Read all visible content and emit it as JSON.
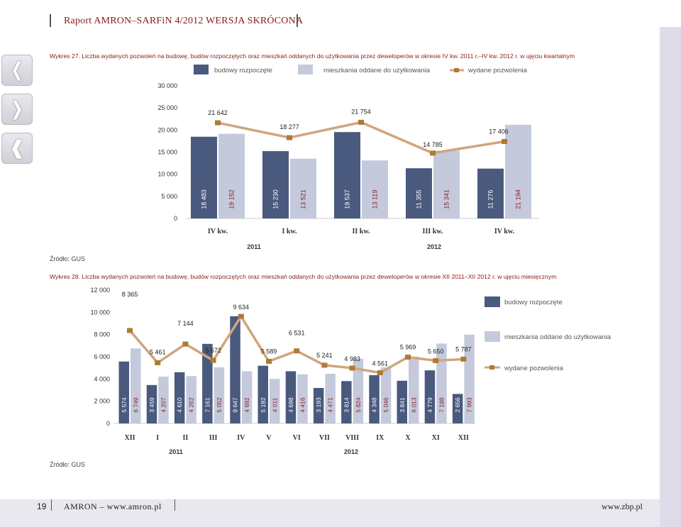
{
  "header": {
    "title": "Raport AMRON–SARFiN 4/2012 WERSJA SKRÓCONA"
  },
  "nav": {
    "prev": "❬",
    "next": "❭",
    "first": "❰"
  },
  "chart27_caption": "Wykres 27. Liczba wydanych pozwoleń na budowę, budów rozpoczętych oraz mieszkań oddanych do użytkowania przez deweloperów w okresie IV kw. 2011 r.–IV kw. 2012 r. w ujęciu kwartalnym",
  "chart28_caption": "Wykres 28. Liczba wydanych pozwoleń na budowę, budów rozpoczętych oraz mieszkań oddanych do użytkowania przez deweloperów w okresie XII 2011–XII 2012 r. w ujęciu miesięcznym",
  "source1": "Źródło: GUS",
  "source2": "Źródło: GUS",
  "footer": {
    "page": "19",
    "left": "AMRON – www.amron.pl",
    "right": "www.zbp.pl"
  },
  "colors": {
    "started": "#4a5a7e",
    "completed": "#c4cadc",
    "permits": "#d0a57e",
    "marker": "#b07a32"
  },
  "chart_data": [
    {
      "type": "bar",
      "categories": [
        "IV kw.",
        "I kw.",
        "II kw.",
        "III kw.",
        "IV kw."
      ],
      "year_labels": [
        "2011",
        "2012"
      ],
      "ylim": [
        0,
        30000
      ],
      "yticks": [
        "0",
        "5 000",
        "10 000",
        "15 000",
        "20 000",
        "25 000",
        "30 000"
      ],
      "legend": [
        "budowy rozpoczęte",
        "mieszkania oddane do użytkowania",
        "wydane pozwolenia"
      ],
      "series": [
        {
          "name": "budowy rozpoczęte",
          "values": [
            18483,
            15230,
            19537,
            11355,
            11276
          ],
          "labels": [
            "18 483",
            "15 230",
            "19 537",
            "11 355",
            "11 276"
          ]
        },
        {
          "name": "mieszkania oddane do użytkowania",
          "values": [
            19152,
            13521,
            13119,
            15341,
            21194
          ],
          "labels": [
            "19 152",
            "13 521",
            "13 119",
            "15 341",
            "21 194"
          ]
        },
        {
          "name": "wydane pozwolenia",
          "values": [
            21642,
            18277,
            21754,
            14785,
            17406
          ],
          "labels": [
            "21 642",
            "18 277",
            "21 754",
            "14 785",
            "17 406"
          ]
        }
      ]
    },
    {
      "type": "bar",
      "categories": [
        "XII",
        "I",
        "II",
        "III",
        "IV",
        "V",
        "VI",
        "VII",
        "VIII",
        "IX",
        "X",
        "XI",
        "XII"
      ],
      "year_labels": [
        "2011",
        "2012"
      ],
      "ylim": [
        0,
        12000
      ],
      "yticks": [
        "0",
        "2 000",
        "4 000",
        "6 000",
        "8 000",
        "10 000",
        "12 000"
      ],
      "legend": [
        "budowy rozpoczęte",
        "mieszkania oddane do użytkowania",
        "wydane pozwolenia"
      ],
      "series": [
        {
          "name": "budowy rozpoczęte",
          "values": [
            5574,
            3459,
            4610,
            7161,
            9647,
            5192,
            4698,
            3193,
            3814,
            4348,
            3841,
            4779,
            2656
          ],
          "labels": [
            "5 574",
            "3 459",
            "4 610",
            "7 161",
            "9 647",
            "5 192",
            "4 698",
            "3 193",
            "3 814",
            "4 348",
            "3 841",
            "4 779",
            "2 656"
          ]
        },
        {
          "name": "mieszkania oddane do użytkowania",
          "values": [
            6749,
            4207,
            4262,
            5052,
            4692,
            4011,
            4416,
            4471,
            5824,
            5046,
            6013,
            7188,
            7993
          ],
          "labels": [
            "6 749",
            "4 207",
            "4 262",
            "5 052",
            "4 692",
            "4 011",
            "4 416",
            "4 471",
            "5 824",
            "5 046",
            "6 013",
            "7 188",
            "7 993"
          ]
        },
        {
          "name": "wydane pozwolenia",
          "values": [
            8365,
            5461,
            7144,
            5672,
            9634,
            5589,
            6531,
            5241,
            4983,
            4561,
            5969,
            5650,
            5787
          ],
          "labels": [
            "8 365",
            "5 461",
            "7 144",
            "5 672",
            "9 634",
            "5 589",
            "6 531",
            "5 241",
            "4 983",
            "4 561",
            "5 969",
            "5 650",
            "5 787"
          ]
        }
      ]
    }
  ]
}
